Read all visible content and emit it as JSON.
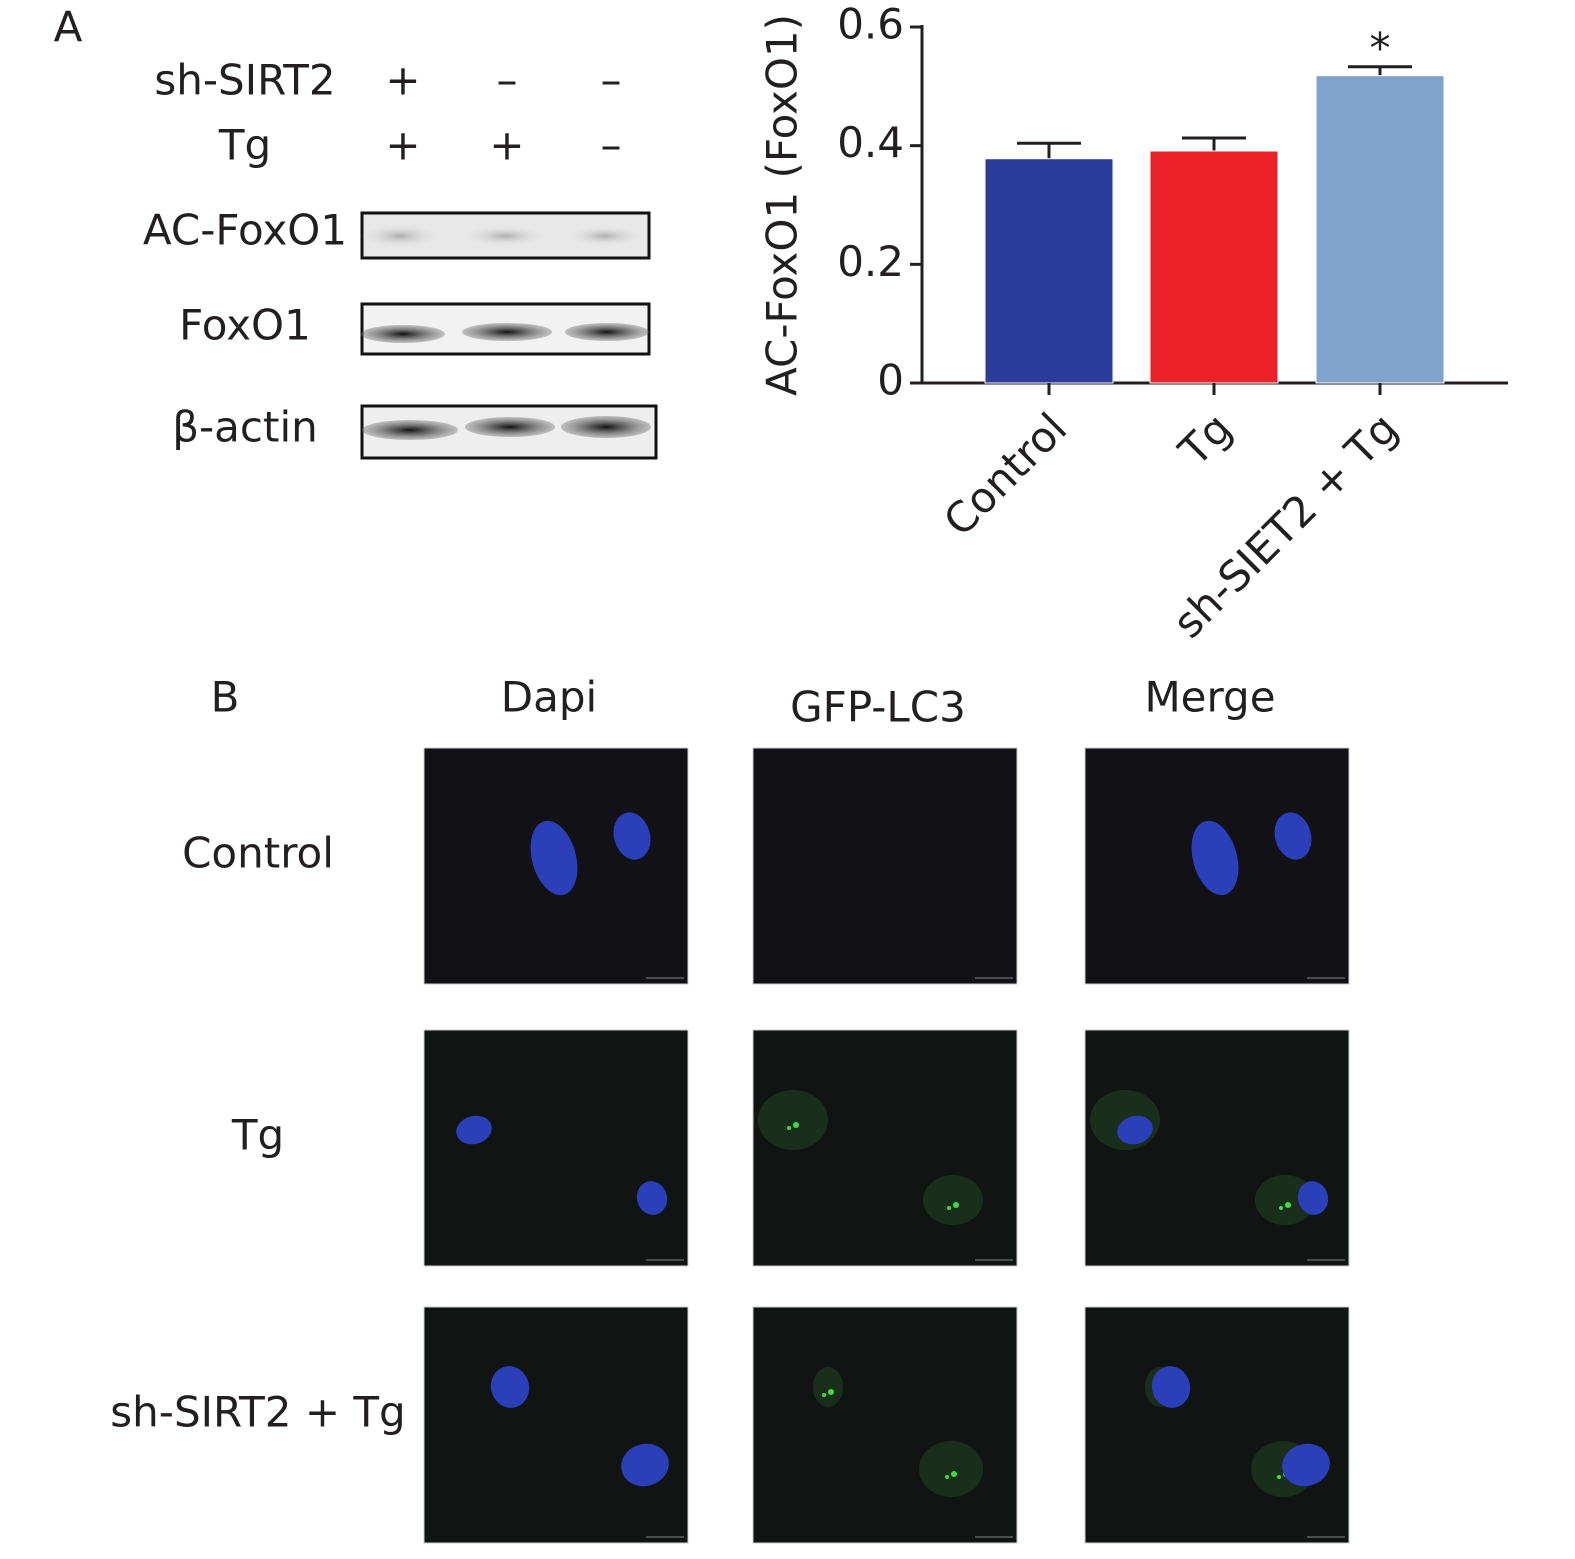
{
  "panel_a": {
    "label": "A",
    "conditions": [
      {
        "name": "sh-SIRT2",
        "signs": [
          "+",
          "–",
          "–"
        ]
      },
      {
        "name": "Tg",
        "signs": [
          "+",
          "+",
          "–"
        ]
      }
    ],
    "blots": [
      "AC-FoxO1",
      "FoxO1",
      "β-actin"
    ]
  },
  "chart_data": {
    "type": "bar",
    "y_label": "AC-FoxO1 (FoxO1)",
    "categories": [
      "Control",
      "Tg",
      "sh-SIET2 + Tg"
    ],
    "values": [
      0.378,
      0.391,
      0.518
    ],
    "errors": [
      0.026,
      0.022,
      0.015
    ],
    "colors": [
      "#2a3c9a",
      "#ec2027",
      "#80a3cc"
    ],
    "ylim": [
      0,
      0.6
    ],
    "yticks": [
      0,
      0.2,
      0.4,
      0.6
    ],
    "annotations": [
      {
        "text": "*",
        "x": "sh-SIET2 + Tg"
      }
    ]
  },
  "panel_b": {
    "label": "B",
    "columns": [
      "Dapi",
      "GFP-LC3",
      "Merge"
    ],
    "rows": [
      "Control",
      "Tg",
      "sh-SIRT2 + Tg"
    ]
  }
}
